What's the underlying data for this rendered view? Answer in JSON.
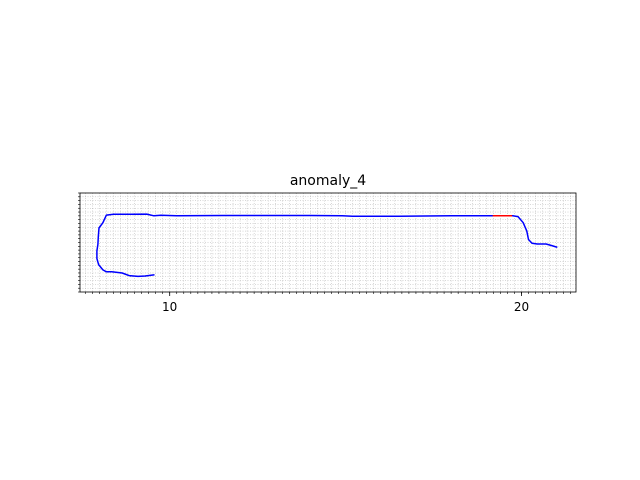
{
  "chart_data": {
    "type": "line",
    "title": "anomaly_4",
    "xlabel": "",
    "ylabel": "",
    "xlim": [
      7.45,
      21.55
    ],
    "ylim": [
      -1.3,
      1.3
    ],
    "x_major_ticks": [
      10,
      20
    ],
    "x_tick_labels": [
      "10",
      "20"
    ],
    "x_minor_step": 0.2,
    "y_minor_step": 0.1,
    "grid": "minor, dotted",
    "y_tick_labels_shown": false,
    "series": [
      {
        "color": "#0000ff",
        "points": [
          [
            9.55,
            -0.85
          ],
          [
            9.3,
            -0.88
          ],
          [
            9.1,
            -0.89
          ],
          [
            8.85,
            -0.87
          ],
          [
            8.65,
            -0.8
          ],
          [
            8.35,
            -0.77
          ],
          [
            8.2,
            -0.77
          ],
          [
            8.1,
            -0.72
          ],
          [
            7.98,
            -0.58
          ],
          [
            7.93,
            -0.42
          ],
          [
            7.93,
            -0.22
          ],
          [
            7.96,
            -0.05
          ],
          [
            7.97,
            0.15
          ],
          [
            7.99,
            0.38
          ],
          [
            8.1,
            0.52
          ],
          [
            8.2,
            0.72
          ],
          [
            8.4,
            0.74
          ],
          [
            8.9,
            0.74
          ],
          [
            9.35,
            0.745
          ],
          [
            9.55,
            0.7
          ],
          [
            9.75,
            0.715
          ],
          [
            10.2,
            0.705
          ],
          [
            11.5,
            0.71
          ],
          [
            13.0,
            0.71
          ],
          [
            14.0,
            0.71
          ],
          [
            14.9,
            0.705
          ],
          [
            15.2,
            0.69
          ],
          [
            16.5,
            0.69
          ],
          [
            18.0,
            0.7
          ],
          [
            19.2,
            0.705
          ]
        ]
      },
      {
        "color": "#ff0000",
        "points": [
          [
            19.2,
            0.705
          ],
          [
            19.75,
            0.705
          ]
        ]
      },
      {
        "color": "#0000ff",
        "points": [
          [
            19.75,
            0.705
          ],
          [
            19.9,
            0.68
          ],
          [
            20.05,
            0.52
          ],
          [
            20.15,
            0.3
          ],
          [
            20.2,
            0.08
          ],
          [
            20.3,
            -0.02
          ],
          [
            20.45,
            -0.04
          ],
          [
            20.7,
            -0.04
          ],
          [
            20.85,
            -0.08
          ],
          [
            21.0,
            -0.12
          ]
        ]
      }
    ]
  }
}
